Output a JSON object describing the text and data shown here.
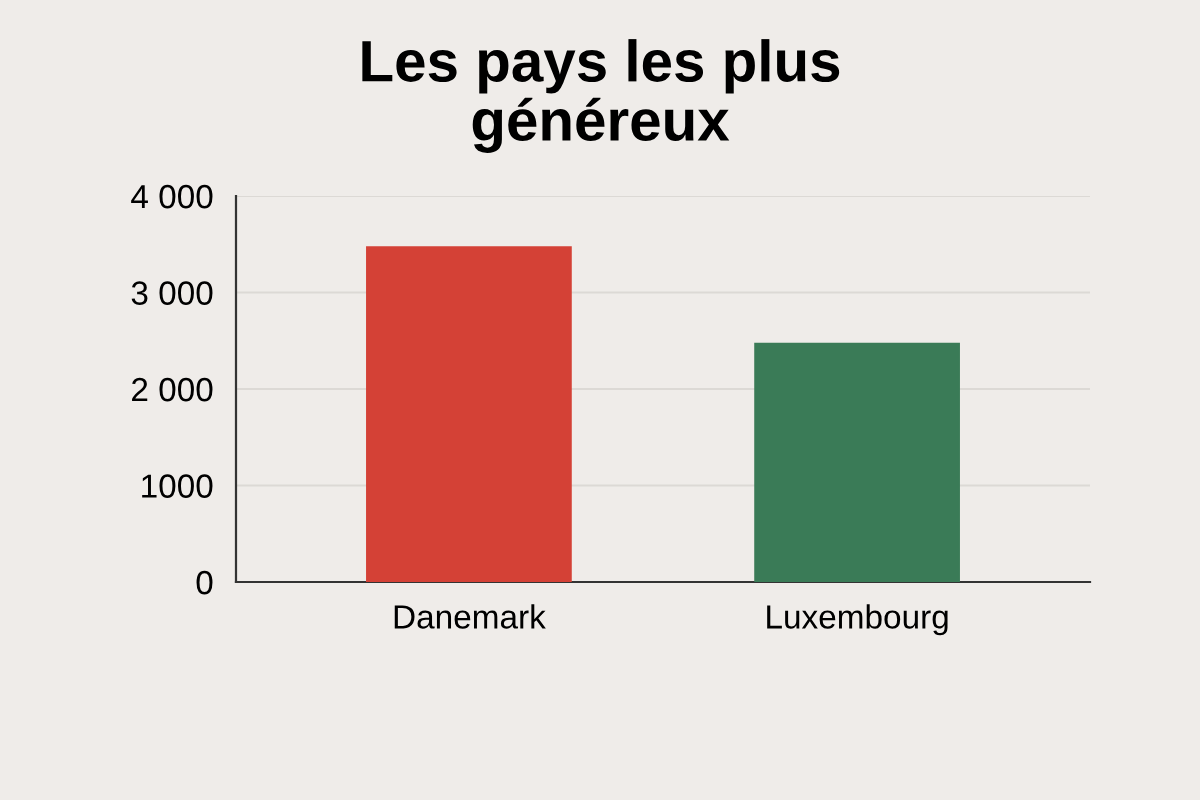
{
  "chart_data": {
    "type": "bar",
    "title": "Les pays les plus\ngénéreux",
    "categories": [
      "Danemark",
      "Luxembourg"
    ],
    "values": [
      3480,
      2480
    ],
    "colors": [
      "#d44136",
      "#3a7b57"
    ],
    "ylim": [
      0,
      4000
    ],
    "yticks": [
      {
        "value": 0,
        "label": "0"
      },
      {
        "value": 1000,
        "label": "1000"
      },
      {
        "value": 2000,
        "label": "2 000"
      },
      {
        "value": 3000,
        "label": "3 000"
      },
      {
        "value": 4000,
        "label": "4 000"
      }
    ],
    "grid": "y"
  }
}
